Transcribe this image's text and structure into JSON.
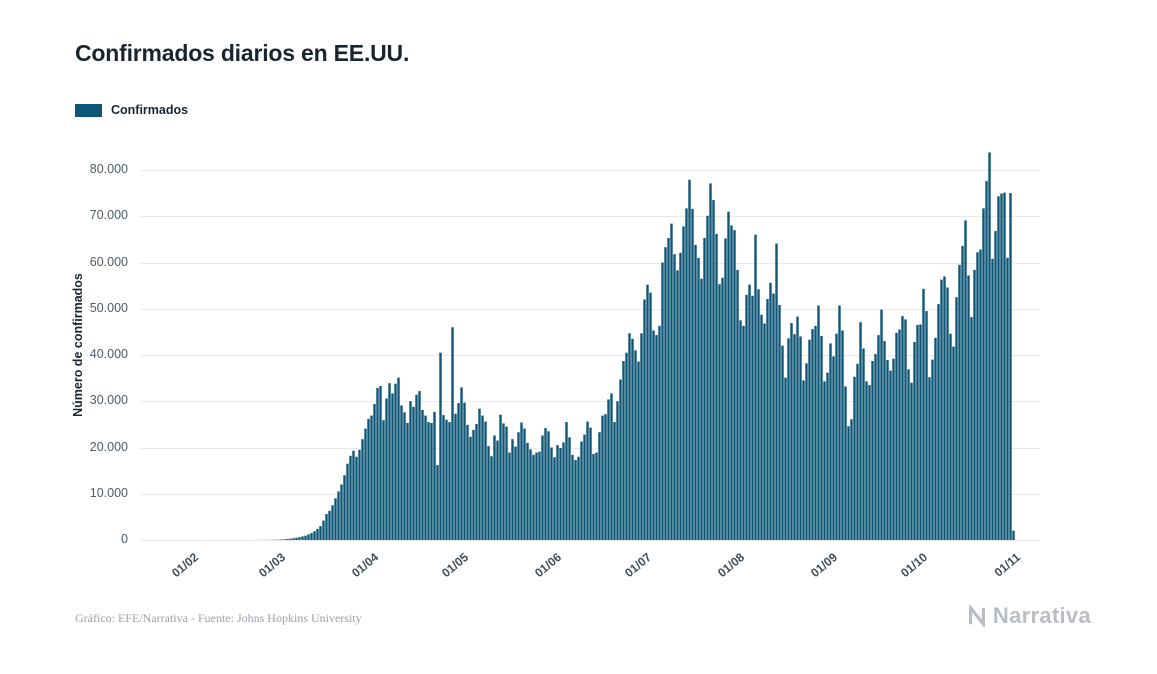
{
  "title": "Confirmados diarios en EE.UU.",
  "legend": {
    "label": "Confirmados"
  },
  "footer": {
    "credit": "Gráfico: EFE/Narrativa - Fuente: Johns Hopkins University"
  },
  "brand": {
    "name": "Narrativa"
  },
  "colors": {
    "bar": "#0e5676",
    "title": "#1a2530",
    "grid": "#e7e9eb",
    "y_tick_text": "#4f5b66",
    "x_tick_text": "#3f4c57",
    "footer_text": "#9aa1a7",
    "brand_text": "#b8bec4",
    "background": "#ffffff"
  },
  "chart_data": {
    "type": "bar",
    "title": "Confirmados diarios en EE.UU.",
    "series_name": "Confirmados",
    "xlabel": "",
    "ylabel": "Número de confirmados",
    "ylim": [
      0,
      84324
    ],
    "grid": true,
    "legend_position": "top-left",
    "y_ticks": [
      {
        "label": "0",
        "value": 0
      },
      {
        "label": "10.000",
        "value": 10000
      },
      {
        "label": "20.000",
        "value": 20000
      },
      {
        "label": "30.000",
        "value": 30000
      },
      {
        "label": "40.000",
        "value": 40000
      },
      {
        "label": "50.000",
        "value": 50000
      },
      {
        "label": "60.000",
        "value": 60000
      },
      {
        "label": "70.000",
        "value": 70000
      },
      {
        "label": "80.000",
        "value": 80000
      }
    ],
    "x_ticks": [
      {
        "label": "01/02",
        "day_index": 10
      },
      {
        "label": "01/03",
        "day_index": 39
      },
      {
        "label": "01/04",
        "day_index": 70
      },
      {
        "label": "01/05",
        "day_index": 100
      },
      {
        "label": "01/06",
        "day_index": 131
      },
      {
        "label": "01/07",
        "day_index": 161
      },
      {
        "label": "01/08",
        "day_index": 192
      },
      {
        "label": "01/09",
        "day_index": 223
      },
      {
        "label": "01/10",
        "day_index": 253
      },
      {
        "label": "01/11",
        "day_index": 284
      }
    ],
    "values": [
      1,
      0,
      1,
      2,
      1,
      2,
      3,
      0,
      5,
      3,
      2,
      3,
      2,
      4,
      3,
      3,
      2,
      5,
      4,
      3,
      6,
      4,
      5,
      8,
      6,
      5,
      7,
      6,
      9,
      8,
      10,
      12,
      14,
      18,
      20,
      24,
      30,
      45,
      60,
      75,
      120,
      150,
      220,
      290,
      380,
      500,
      620,
      780,
      940,
      1200,
      1500,
      1900,
      2400,
      3000,
      4200,
      5600,
      6300,
      7500,
      9000,
      10500,
      12000,
      14000,
      16500,
      18200,
      19300,
      18000,
      19500,
      21800,
      24100,
      26200,
      26900,
      29400,
      32900,
      33300,
      25900,
      30600,
      33900,
      31700,
      33800,
      35100,
      29100,
      27600,
      25300,
      30000,
      28800,
      31400,
      32200,
      28100,
      26900,
      25500,
      25300,
      27700,
      16200,
      40500,
      27000,
      26000,
      25500,
      46000,
      27300,
      29600,
      33000,
      29700,
      24900,
      22300,
      23800,
      25100,
      28400,
      26900,
      25600,
      20300,
      18100,
      22600,
      21500,
      27100,
      25200,
      24500,
      18900,
      21800,
      20200,
      23300,
      25400,
      24100,
      21000,
      19600,
      18400,
      18900,
      19100,
      22600,
      24200,
      23500,
      20000,
      17900,
      20500,
      19900,
      21100,
      25500,
      22200,
      18400,
      17300,
      18000,
      21300,
      22800,
      25600,
      24300,
      18600,
      18900,
      23300,
      26900,
      27200,
      30400,
      31700,
      25500,
      30000,
      34700,
      38700,
      40500,
      44700,
      43500,
      41000,
      38600,
      44700,
      52000,
      55200,
      53500,
      45300,
      44300,
      46300,
      60000,
      63300,
      65300,
      68400,
      61800,
      58300,
      62100,
      67800,
      71700,
      77900,
      71600,
      63800,
      61000,
      56500,
      65300,
      70100,
      77100,
      73500,
      66200,
      55300,
      56700,
      65200,
      71000,
      68000,
      67000,
      58400,
      47500,
      46300,
      53000,
      55200,
      52800,
      66000,
      54200,
      48700,
      46800,
      52100,
      55600,
      53300,
      64100,
      50800,
      42000,
      35100,
      43600,
      46900,
      44500,
      48300,
      44000,
      34500,
      38200,
      43300,
      45600,
      46300,
      50700,
      44100,
      34300,
      36200,
      42500,
      39700,
      44600,
      50700,
      45300,
      33200,
      24600,
      26100,
      35300,
      38100,
      47100,
      41400,
      34300,
      33500,
      38700,
      40200,
      44300,
      49800,
      43000,
      38900,
      36600,
      39200,
      44800,
      45500,
      48400,
      47700,
      36900,
      34000,
      42800,
      46500,
      46600,
      54300,
      49500,
      35200,
      39000,
      43700,
      51000,
      56300,
      57000,
      54600,
      44600,
      41800,
      52500,
      59500,
      63600,
      69100,
      57200,
      48200,
      58400,
      62200,
      62800,
      71700,
      77600,
      83800,
      60800,
      66800,
      74300,
      74900,
      75100,
      61000,
      75000,
      2000
    ]
  }
}
